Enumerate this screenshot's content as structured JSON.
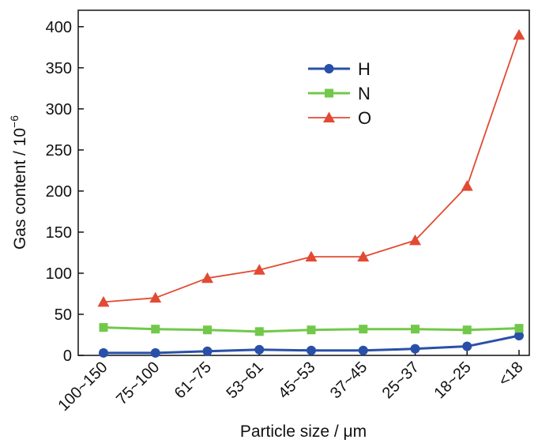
{
  "chart_data": {
    "type": "line",
    "categories": [
      "100~150",
      "75~100",
      "61~75",
      "53~61",
      "45~53",
      "37~45",
      "25~37",
      "18~25",
      "<18"
    ],
    "xlabel": "Particle size / μm",
    "ylabel": "Gas content / 10",
    "ylabel_exponent": "−6",
    "ylim": [
      0,
      420
    ],
    "yticks": [
      0,
      50,
      100,
      150,
      200,
      250,
      300,
      350,
      400
    ],
    "grid": false,
    "legend_position": "upper-center",
    "series": [
      {
        "name": "H",
        "color": "#2950a8",
        "marker": "circle",
        "values": [
          3,
          3,
          5,
          7,
          6,
          6,
          8,
          11,
          24
        ]
      },
      {
        "name": "N",
        "color": "#72c84a",
        "marker": "square",
        "values": [
          34,
          32,
          31,
          29,
          31,
          32,
          32,
          31,
          33
        ]
      },
      {
        "name": "O",
        "color": "#e24a33",
        "marker": "triangle",
        "values": [
          65,
          70,
          94,
          104,
          120,
          120,
          140,
          206,
          390
        ]
      }
    ]
  }
}
